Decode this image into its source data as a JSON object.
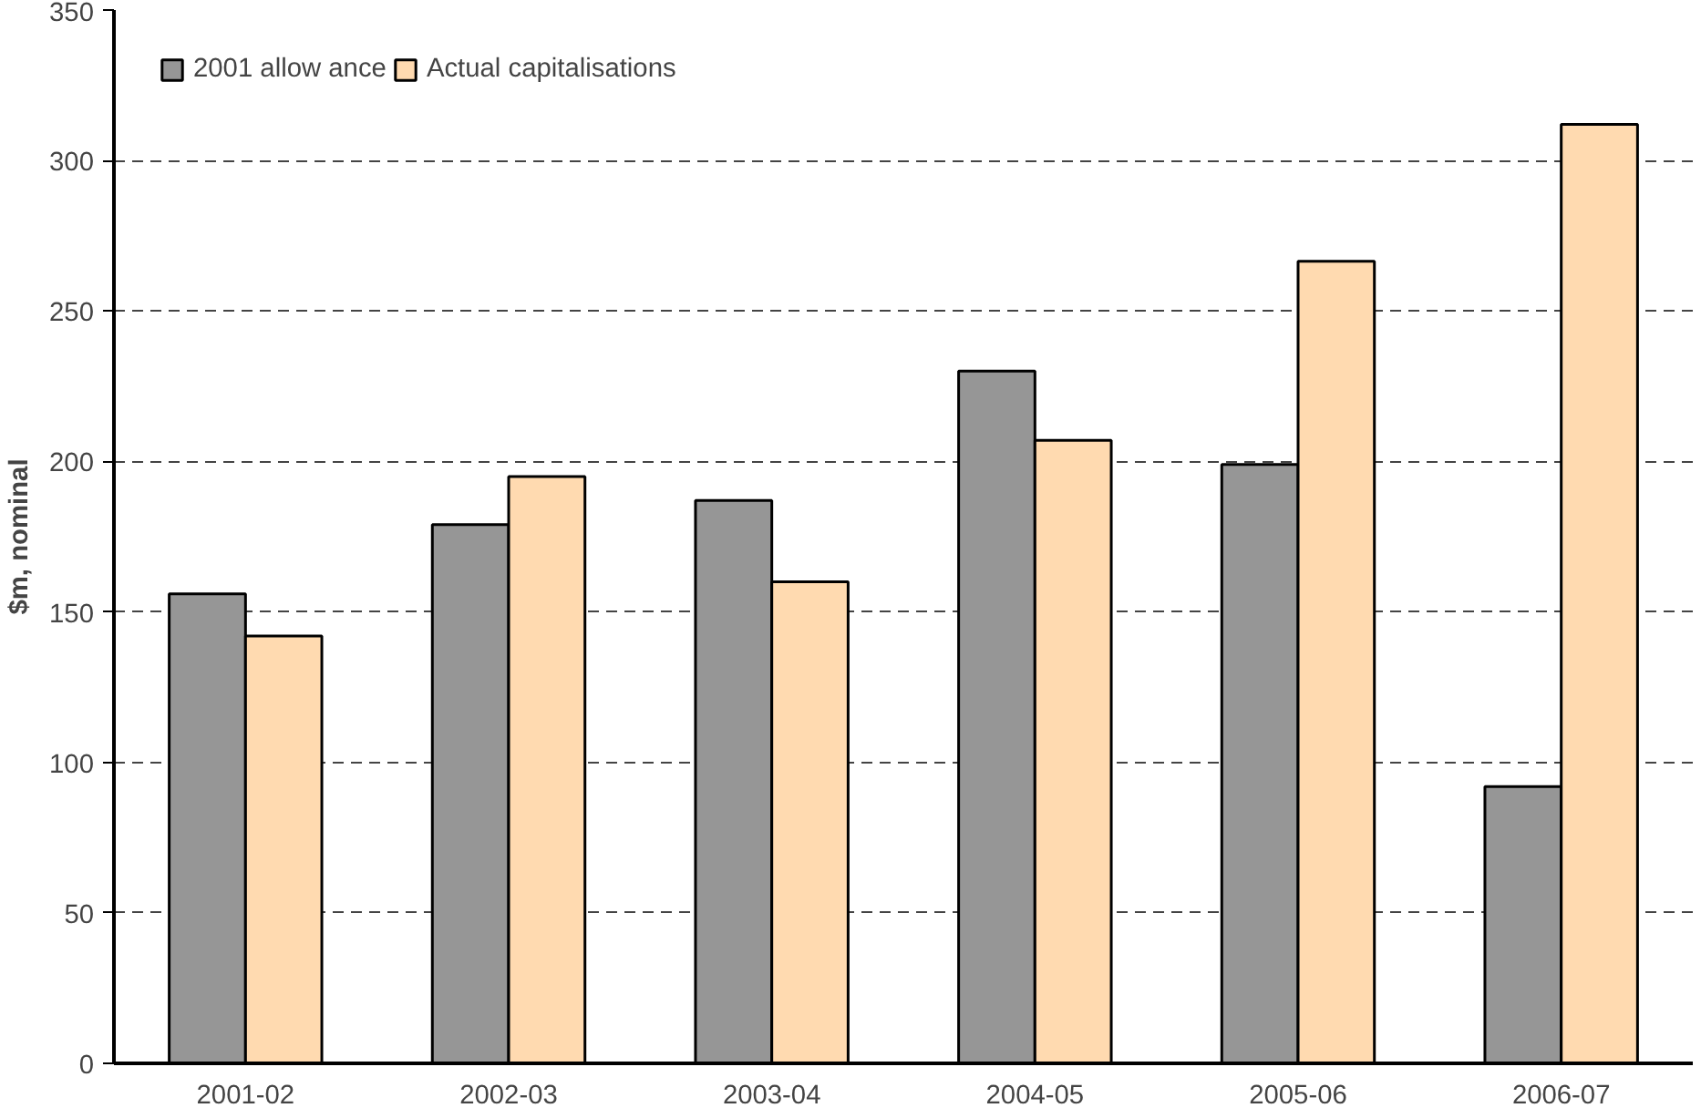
{
  "chart_data": {
    "type": "bar",
    "ylabel": "$m, nominal",
    "categories": [
      "2001-02",
      "2002-03",
      "2003-04",
      "2004-05",
      "2005-06",
      "2006-07"
    ],
    "series": [
      {
        "name": "2001 allow ance",
        "color": "#969696",
        "values": [
          156,
          179,
          187,
          230,
          199,
          92
        ]
      },
      {
        "name": "Actual capitalisations",
        "color": "#ffdab0",
        "values": [
          142,
          195,
          160,
          207,
          266.5,
          312
        ]
      }
    ],
    "ylim": [
      0,
      350
    ],
    "yticks": [
      0,
      50,
      100,
      150,
      200,
      250,
      300,
      350
    ],
    "grid": "y",
    "legend": "top left"
  }
}
